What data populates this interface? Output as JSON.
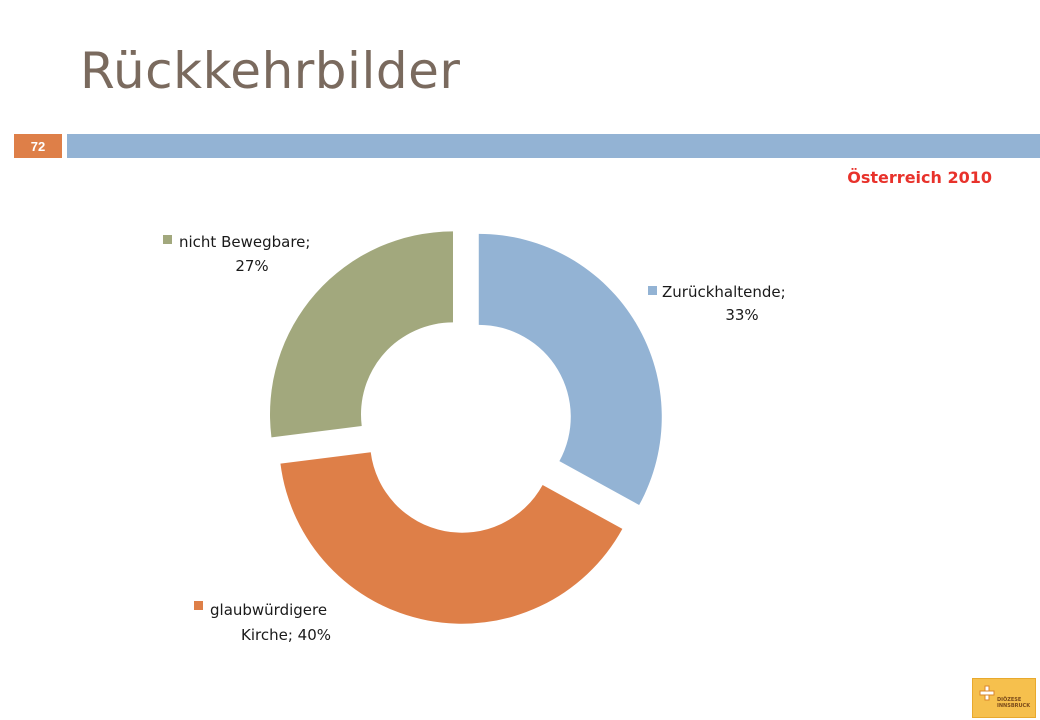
{
  "slide": {
    "title": "Rückkehrbilder",
    "number": "72",
    "subtitle": "Österreich 2010"
  },
  "logo": {
    "line1": "DIÖZESE",
    "line2": "INNSBRUCK"
  },
  "colors": {
    "accent_bar": "#93b3d4",
    "number_box": "#de7f48",
    "title_text": "#7a6a5e",
    "subtitle_text": "#e8322b"
  },
  "chart_data": {
    "type": "pie",
    "variant": "exploded-doughnut",
    "title": "",
    "slices": [
      {
        "name": "Zurückhaltende",
        "value": 33,
        "label_line1": "Zurückhaltende;",
        "label_line2": "33%",
        "color": "#93b3d4"
      },
      {
        "name": "glaubwürdigere Kirche",
        "value": 40,
        "label_line1": "glaubwürdigere",
        "label_line2": "Kirche; 40%",
        "color": "#de7f48"
      },
      {
        "name": "nicht Bewegbare",
        "value": 27,
        "label_line1": "nicht Bewegbare;",
        "label_line2": "27%",
        "color": "#a2a87d"
      }
    ],
    "unit": "%",
    "legend": "none"
  }
}
